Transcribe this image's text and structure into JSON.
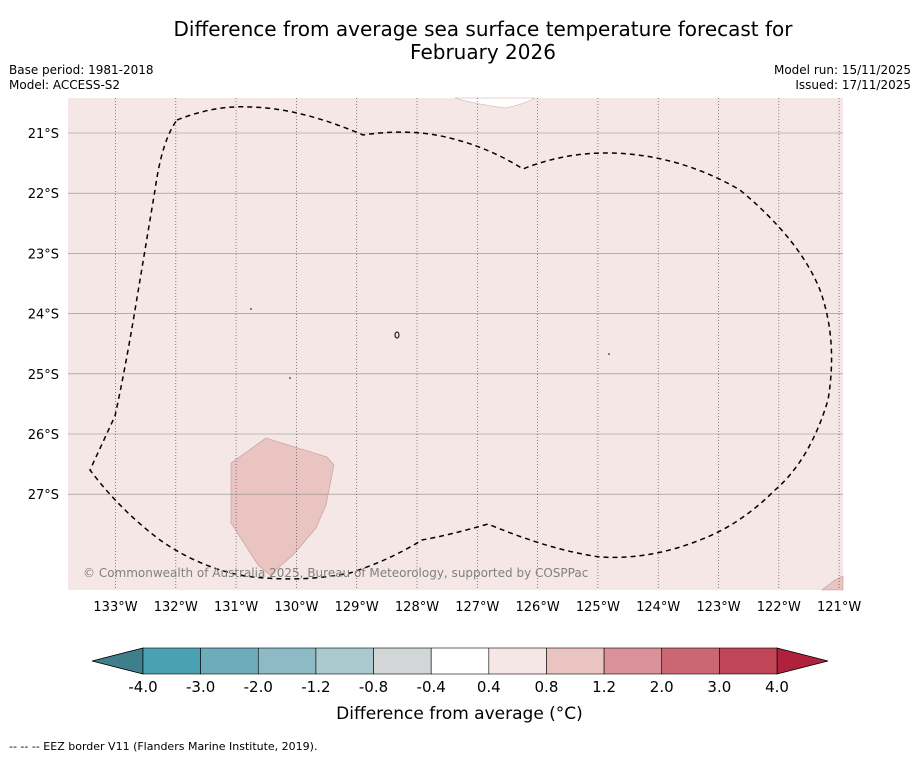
{
  "title_line1": "Difference from average sea surface temperature forecast for",
  "title_line2": "February 2026",
  "base_period": "Base period: 1981-2018",
  "model": "Model: ACCESS-S2",
  "model_run": "Model run: 15/11/2025",
  "issued": "Issued: 17/11/2025",
  "latitude_labels": [
    "21°S",
    "22°S",
    "23°S",
    "24°S",
    "25°S",
    "26°S",
    "27°S"
  ],
  "longitude_labels": [
    "133°W",
    "132°W",
    "131°W",
    "130°W",
    "129°W",
    "128°W",
    "127°W",
    "126°W",
    "125°W",
    "124°W",
    "123°W",
    "122°W",
    "121°W"
  ],
  "copyright": "© Commonwealth of Australia 2025, Bureau of Meteorology, supported by COSPPac",
  "colorbar": {
    "title": "Difference from average (°C)",
    "tick_labels": [
      "-4.0",
      "-3.0",
      "-2.0",
      "-1.2",
      "-0.8",
      "-0.4",
      "0.4",
      "0.8",
      "1.2",
      "2.0",
      "3.0",
      "4.0"
    ],
    "under_color": "#3e7f8b",
    "over_color": "#b0213d",
    "bin_colors": [
      "#4aa1b2",
      "#6dadbb",
      "#8dbac4",
      "#aac9ce",
      "#d2d6d7",
      "#ffffff",
      "#f5e7e6",
      "#e9c4c1",
      "#d9919a",
      "#cb6772",
      "#c04556"
    ]
  },
  "fill_colors": {
    "background": "#f5e7e6",
    "warm_patch": "#e9c4c1",
    "eez_border": "#000000"
  },
  "footnote": "-- -- -- EEZ border V11 (Flanders Marine Institute, 2019)."
}
